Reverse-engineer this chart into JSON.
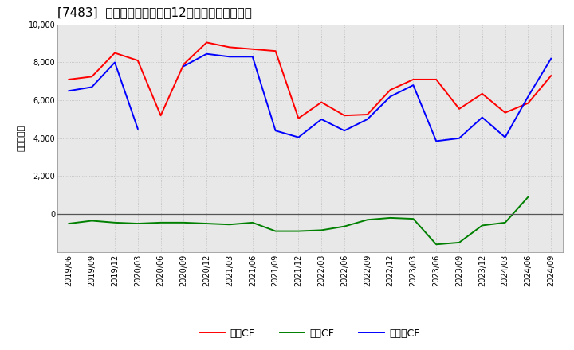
{
  "title": "[7483]  キャッシュフローの12か月移動合計の推移",
  "ylabel": "（百万円）",
  "x_labels": [
    "2019/06",
    "2019/09",
    "2019/12",
    "2020/03",
    "2020/06",
    "2020/09",
    "2020/12",
    "2021/03",
    "2021/06",
    "2021/09",
    "2021/12",
    "2022/03",
    "2022/06",
    "2022/09",
    "2022/12",
    "2023/03",
    "2023/06",
    "2023/09",
    "2023/12",
    "2024/03",
    "2024/06",
    "2024/09"
  ],
  "eigyo_cf": [
    7100,
    7250,
    8500,
    8100,
    5200,
    7900,
    9050,
    8800,
    8700,
    8600,
    5050,
    5900,
    5200,
    5250,
    6550,
    7100,
    7100,
    5550,
    6350,
    5350,
    5850,
    7300
  ],
  "toshi_cf": [
    -500,
    -350,
    -450,
    -500,
    -450,
    -450,
    -500,
    -550,
    -450,
    -900,
    -900,
    -850,
    -650,
    -300,
    -200,
    -250,
    -1600,
    -1500,
    -600,
    -450,
    900,
    null
  ],
  "free_cf": [
    6500,
    6700,
    8000,
    4500,
    null,
    7800,
    8450,
    8300,
    8300,
    4400,
    4050,
    5000,
    4400,
    5000,
    6200,
    6800,
    3850,
    4000,
    5100,
    4050,
    6200,
    8200
  ],
  "line_colors": {
    "eigyo": "#ff0000",
    "toshi": "#008000",
    "free": "#0000ff"
  },
  "ylim": [
    -2000,
    10000
  ],
  "yticks": [
    0,
    2000,
    4000,
    6000,
    8000,
    10000
  ],
  "plot_bg": "#e8e8e8",
  "background_color": "#ffffff",
  "grid_color": "#bbbbbb",
  "legend_labels": {
    "eigyo": "営業CF",
    "toshi": "投資CF",
    "free": "フリーCF"
  },
  "title_fontsize": 11,
  "axis_fontsize": 7
}
